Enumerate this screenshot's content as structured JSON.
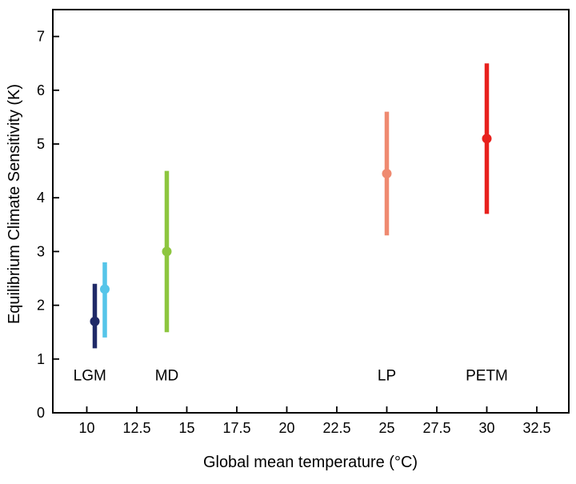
{
  "colors": {
    "background": "#ffffff",
    "axis": "#000000",
    "text": "#000000"
  },
  "chart_data": {
    "type": "scatter",
    "title": "",
    "xlabel": "Global mean temperature (°C)",
    "ylabel": "Equilibrium Climate Sensitivity (K)",
    "xlim": [
      8.3,
      34.1
    ],
    "ylim": [
      0,
      7.5
    ],
    "x_ticks": [
      "10",
      "12.5",
      "15",
      "17.5",
      "20",
      "22.5",
      "25",
      "27.5",
      "30",
      "32.5"
    ],
    "y_ticks": [
      "0",
      "1",
      "2",
      "3",
      "4",
      "5",
      "6",
      "7"
    ],
    "grid": false,
    "legend": "none",
    "series": [
      {
        "id": "lgm-dark-blue",
        "label": "LGM",
        "x": 10.4,
        "y": 1.7,
        "y_low": 1.2,
        "y_high": 2.4,
        "color": "#202a68"
      },
      {
        "id": "lgm-light-blue",
        "label": "LGM",
        "x": 10.9,
        "y": 2.3,
        "y_low": 1.4,
        "y_high": 2.8,
        "color": "#55c5e9"
      },
      {
        "id": "md",
        "label": "MD",
        "x": 14,
        "y": 3.0,
        "y_low": 1.5,
        "y_high": 4.5,
        "color": "#8dc63f"
      },
      {
        "id": "lp",
        "label": "LP",
        "x": 25,
        "y": 4.45,
        "y_low": 3.3,
        "y_high": 5.6,
        "color": "#ef8a70"
      },
      {
        "id": "petm",
        "label": "PETM",
        "x": 30,
        "y": 5.1,
        "y_low": 3.7,
        "y_high": 6.5,
        "color": "#e8211d"
      }
    ],
    "annotations": [
      {
        "text": "LGM",
        "x": 10.15,
        "y": 0.6
      },
      {
        "text": "MD",
        "x": 14,
        "y": 0.6
      },
      {
        "text": "LP",
        "x": 25,
        "y": 0.6
      },
      {
        "text": "PETM",
        "x": 30,
        "y": 0.6
      }
    ]
  }
}
